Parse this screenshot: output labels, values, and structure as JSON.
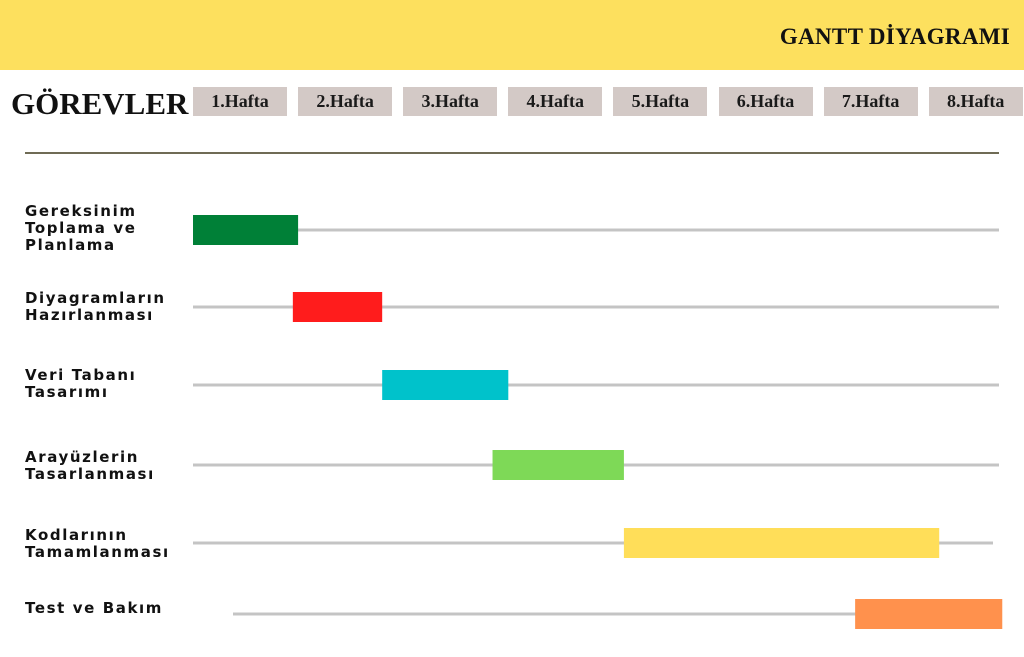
{
  "title": "GANTT DİYAGRAMI",
  "tasks_heading": "GÖREVLER",
  "colors": {
    "header_band": "#fde05e",
    "week_box": "#d3c9c6",
    "track_line": "#c4c4c4",
    "divider": "#6f6b55"
  },
  "chart_data": {
    "type": "gantt",
    "title": "GANTT DİYAGRAMI",
    "y_heading": "GÖREVLER",
    "x_unit": "Hafta",
    "x_range": [
      0,
      8
    ],
    "categories": [
      "1.Hafta",
      "2.Hafta",
      "3.Hafta",
      "4.Hafta",
      "5.Hafta",
      "6.Hafta",
      "7.Hafta",
      "8.Hafta"
    ],
    "tasks": [
      {
        "label": "Gereksinim\nToplama ve\nPlanlama",
        "start": 0.0,
        "end": 1.0,
        "color": "#008037"
      },
      {
        "label": "Diyagramların\nHazırlanması",
        "start": 0.95,
        "end": 1.8,
        "color": "#ff1c1c"
      },
      {
        "label": "Veri Tabanı\nTasarımı",
        "start": 1.8,
        "end": 3.0,
        "color": "#00c2cb"
      },
      {
        "label": "Arayüzlerin\nTasarlanması",
        "start": 2.85,
        "end": 4.1,
        "color": "#7ed957"
      },
      {
        "label": "Kodlarının\nTamamlanması",
        "start": 4.1,
        "end": 7.1,
        "color": "#ffde59"
      },
      {
        "label": "Test ve Bakım",
        "start": 6.3,
        "end": 7.7,
        "color": "#ff914d"
      }
    ],
    "grid": false,
    "legend": "none"
  }
}
